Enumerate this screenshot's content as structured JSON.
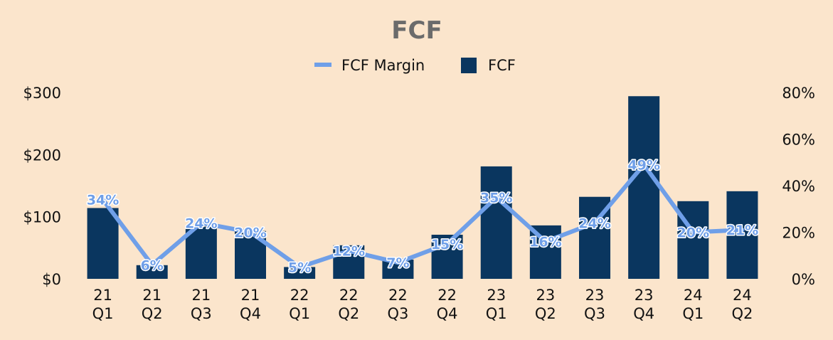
{
  "chart_data": {
    "type": "bar",
    "title": "FCF",
    "categories": [
      [
        "21",
        "Q1"
      ],
      [
        "21",
        "Q2"
      ],
      [
        "21",
        "Q3"
      ],
      [
        "21",
        "Q4"
      ],
      [
        "22",
        "Q1"
      ],
      [
        "22",
        "Q2"
      ],
      [
        "22",
        "Q3"
      ],
      [
        "22",
        "Q4"
      ],
      [
        "23",
        "Q1"
      ],
      [
        "23",
        "Q2"
      ],
      [
        "23",
        "Q3"
      ],
      [
        "23",
        "Q4"
      ],
      [
        "24",
        "Q1"
      ],
      [
        "24",
        "Q2"
      ]
    ],
    "series": [
      {
        "name": "FCF",
        "type": "bar",
        "axis": "left",
        "color": "#0a365f",
        "values": [
          114,
          22,
          84,
          77,
          19,
          54,
          31,
          71,
          181,
          86,
          132,
          294,
          125,
          141
        ]
      },
      {
        "name": "FCF Margin",
        "type": "line",
        "axis": "right",
        "color": "#6f9fe8",
        "values": [
          34,
          6,
          24,
          20,
          5,
          12,
          7,
          15,
          35,
          16,
          24,
          49,
          20,
          21
        ],
        "labels": [
          "34%",
          "6%",
          "24%",
          "20%",
          "5%",
          "12%",
          "7%",
          "15%",
          "35%",
          "16%",
          "24%",
          "49%",
          "20%",
          "21%"
        ]
      }
    ],
    "y_left": {
      "ylim": [
        0,
        300
      ],
      "ticks": [
        0,
        100,
        200,
        300
      ],
      "tick_labels": [
        "$0",
        "$100",
        "$200",
        "$300"
      ]
    },
    "y_right": {
      "ylim": [
        0,
        80
      ],
      "ticks": [
        0,
        20,
        40,
        60,
        80
      ],
      "tick_labels": [
        "0%",
        "20%",
        "40%",
        "60%",
        "80%"
      ]
    },
    "legend": {
      "position": "top-center",
      "entries": [
        "FCF Margin",
        "FCF"
      ]
    },
    "grid": false,
    "background": "#fbe5cc"
  }
}
